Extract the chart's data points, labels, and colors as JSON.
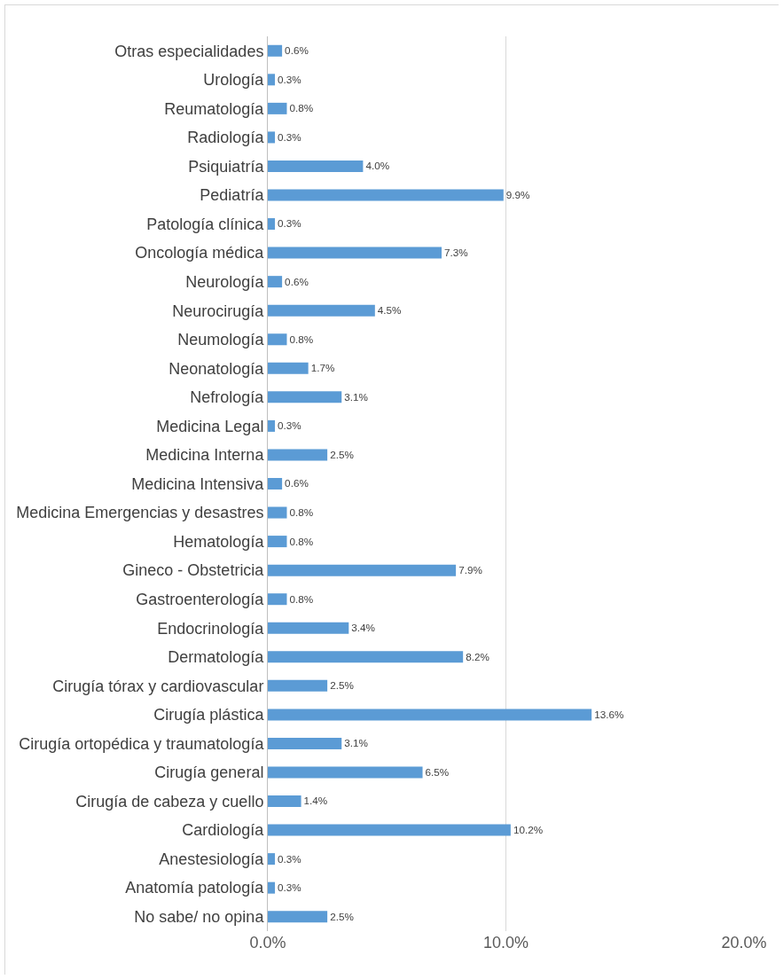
{
  "chart_data": {
    "type": "bar",
    "orientation": "horizontal",
    "categories": [
      "Otras especialidades",
      "Urología",
      "Reumatología",
      "Radiología",
      "Psiquiatría",
      "Pediatría",
      "Patología clínica",
      "Oncología médica",
      "Neurología",
      "Neurocirugía",
      "Neumología",
      "Neonatología",
      "Nefrología",
      "Medicina Legal",
      "Medicina Interna",
      "Medicina Intensiva",
      "Medicina Emergencias y desastres",
      "Hematología",
      "Gineco - Obstetricia",
      "Gastroenterología",
      "Endocrinología",
      "Dermatología",
      "Cirugía tórax y cardiovascular",
      "Cirugía plástica",
      "Cirugía ortopédica y traumatología",
      "Cirugía general",
      "Cirugía de cabeza y cuello",
      "Cardiología",
      "Anestesiología",
      "Anatomía patología",
      "No sabe/ no opina"
    ],
    "values": [
      0.6,
      0.3,
      0.8,
      0.3,
      4.0,
      9.9,
      0.3,
      7.3,
      0.6,
      4.5,
      0.8,
      1.7,
      3.1,
      0.3,
      2.5,
      0.6,
      0.8,
      0.8,
      7.9,
      0.8,
      3.4,
      8.2,
      2.5,
      13.6,
      3.1,
      6.5,
      1.4,
      10.2,
      0.3,
      0.3,
      2.5
    ],
    "value_labels": [
      "0.6%",
      "0.3%",
      "0.8%",
      "0.3%",
      "4.0%",
      "9.9%",
      "0.3%",
      "7.3%",
      "0.6%",
      "4.5%",
      "0.8%",
      "1.7%",
      "3.1%",
      "0.3%",
      "2.5%",
      "0.6%",
      "0.8%",
      "0.8%",
      "7.9%",
      "0.8%",
      "3.4%",
      "8.2%",
      "2.5%",
      "13.6%",
      "3.1%",
      "6.5%",
      "1.4%",
      "10.2%",
      "0.3%",
      "0.3%",
      "2.5%"
    ],
    "color": "#5b9bd5",
    "xlim": [
      0,
      20
    ],
    "xticks": [
      {
        "value": 0,
        "label": "0.0%"
      },
      {
        "value": 10,
        "label": "10.0%"
      },
      {
        "value": 20,
        "label": "20.0%"
      }
    ],
    "grid": "x",
    "legend": false
  }
}
